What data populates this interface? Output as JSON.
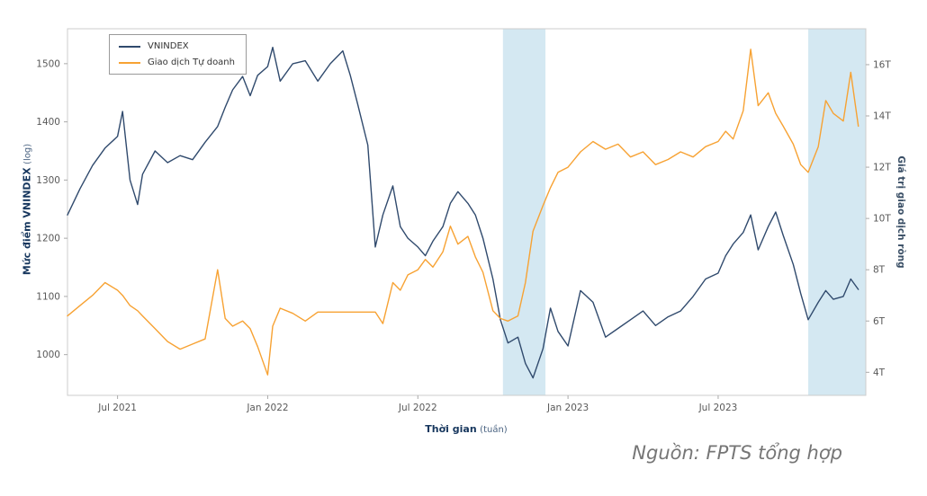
{
  "caption": "Nguồn: FPTS tổng hợp",
  "chart_data": {
    "type": "line",
    "title": "",
    "x_axis": {
      "label": "Thời gian",
      "label_sub": "(tuần)",
      "range": [
        0,
        31.9
      ],
      "ticks": [
        {
          "t": 2,
          "label": "Jul 2021"
        },
        {
          "t": 8,
          "label": "Jan 2022"
        },
        {
          "t": 14,
          "label": "Jul 2022"
        },
        {
          "t": 20,
          "label": "Jan 2023"
        },
        {
          "t": 26,
          "label": "Jul 2023"
        }
      ]
    },
    "y_left": {
      "label": "Mức điểm VNINDEX",
      "label_sub": "(log)",
      "range": [
        930,
        1560
      ],
      "ticks": [
        1000,
        1100,
        1200,
        1300,
        1400,
        1500
      ]
    },
    "y_right": {
      "label": "Giá trị giao dịch ròng",
      "range": [
        3.1,
        17.4
      ],
      "ticks": [
        {
          "v": 4,
          "label": "4T"
        },
        {
          "v": 6,
          "label": "6T"
        },
        {
          "v": 8,
          "label": "8T"
        },
        {
          "v": 10,
          "label": "10T"
        },
        {
          "v": 12,
          "label": "12T"
        },
        {
          "v": 14,
          "label": "14T"
        },
        {
          "v": 16,
          "label": "16T"
        }
      ]
    },
    "bands": [
      {
        "from": 17.4,
        "to": 19.1
      },
      {
        "from": 29.6,
        "to": 31.9
      }
    ],
    "band_color": "#d4e8f2",
    "plot_border_color": "#cccccc",
    "tick_label_color": "#595959",
    "x": [
      0,
      0.5,
      1,
      1.5,
      2,
      2.2,
      2.5,
      2.8,
      3,
      3.5,
      4,
      4.5,
      5,
      5.5,
      6,
      6.3,
      6.6,
      7,
      7.3,
      7.6,
      8,
      8.2,
      8.5,
      9,
      9.5,
      10,
      10.5,
      11,
      11.3,
      11.6,
      12,
      12.3,
      12.6,
      13,
      13.3,
      13.6,
      14,
      14.3,
      14.6,
      15,
      15.3,
      15.6,
      16,
      16.3,
      16.6,
      17,
      17.3,
      17.6,
      18,
      18.3,
      18.6,
      19,
      19.3,
      19.6,
      20,
      20.5,
      21,
      21.5,
      22,
      22.5,
      23,
      23.5,
      24,
      24.5,
      25,
      25.5,
      26,
      26.3,
      26.6,
      27,
      27.3,
      27.6,
      28,
      28.3,
      28.6,
      29,
      29.3,
      29.6,
      30,
      30.3,
      30.6,
      31,
      31.3,
      31.6
    ],
    "series": [
      {
        "name": "VNINDEX",
        "color": "#304a6d",
        "axis": "left",
        "values": [
          1240,
          1285,
          1325,
          1355,
          1375,
          1418,
          1300,
          1258,
          1310,
          1350,
          1330,
          1342,
          1335,
          1365,
          1392,
          1425,
          1455,
          1478,
          1445,
          1480,
          1495,
          1528,
          1470,
          1500,
          1505,
          1470,
          1500,
          1522,
          1480,
          1430,
          1360,
          1185,
          1240,
          1290,
          1220,
          1200,
          1185,
          1170,
          1195,
          1220,
          1260,
          1280,
          1260,
          1240,
          1200,
          1130,
          1060,
          1020,
          1030,
          985,
          960,
          1010,
          1080,
          1040,
          1015,
          1110,
          1090,
          1030,
          1045,
          1060,
          1075,
          1050,
          1065,
          1075,
          1100,
          1130,
          1140,
          1170,
          1190,
          1210,
          1240,
          1180,
          1220,
          1245,
          1205,
          1155,
          1105,
          1060,
          1090,
          1110,
          1095,
          1100,
          1130,
          1112
        ]
      },
      {
        "name": "Giao dịch Tự doanh",
        "color": "#f7a233",
        "axis": "right",
        "values": [
          6.2,
          6.6,
          7.0,
          7.5,
          7.2,
          7.0,
          6.6,
          6.4,
          6.2,
          5.7,
          5.2,
          4.9,
          5.1,
          5.3,
          8.0,
          6.1,
          5.8,
          6.0,
          5.7,
          5.0,
          3.9,
          5.8,
          6.5,
          6.3,
          6.0,
          6.35,
          6.35,
          6.35,
          6.35,
          6.35,
          6.35,
          6.35,
          5.9,
          7.5,
          7.2,
          7.8,
          8.0,
          8.4,
          8.1,
          8.7,
          9.7,
          9.0,
          9.3,
          8.5,
          7.9,
          6.4,
          6.1,
          6.0,
          6.2,
          7.5,
          9.5,
          10.5,
          11.2,
          11.8,
          12.0,
          12.6,
          13.0,
          12.7,
          12.9,
          12.4,
          12.6,
          12.1,
          12.3,
          12.6,
          12.4,
          12.8,
          13.0,
          13.4,
          13.1,
          14.2,
          16.6,
          14.4,
          14.9,
          14.1,
          13.6,
          12.9,
          12.1,
          11.8,
          12.8,
          14.6,
          14.1,
          13.8,
          15.7,
          13.6
        ]
      }
    ]
  }
}
